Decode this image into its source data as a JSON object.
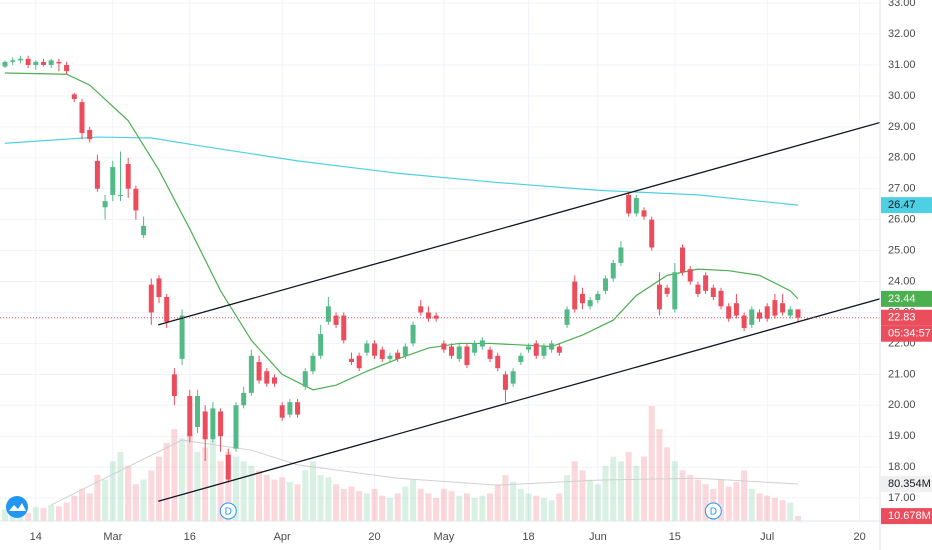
{
  "chart_data": {
    "type": "candlestick",
    "xlim": [
      -0.65,
      113.65
    ],
    "ylim": [
      16.26,
      33.1
    ],
    "volume_lim": [
      0,
      1133
    ],
    "grid": true,
    "up_color": "#53b987",
    "down_color": "#eb4d5c",
    "xticks": [
      {
        "value": 4,
        "label": "14"
      },
      {
        "value": 14,
        "label": "Mar"
      },
      {
        "value": 24,
        "label": "16"
      },
      {
        "value": 36,
        "label": "Apr"
      },
      {
        "value": 48,
        "label": "20"
      },
      {
        "value": 57,
        "label": "May"
      },
      {
        "value": 68,
        "label": "18"
      },
      {
        "value": 77,
        "label": "Jun"
      },
      {
        "value": 87,
        "label": "15"
      },
      {
        "value": 99,
        "label": "Jul"
      },
      {
        "value": 111,
        "label": "20"
      }
    ],
    "yticks": [
      {
        "value": 17,
        "label": "17.00"
      },
      {
        "value": 18,
        "label": "18.00"
      },
      {
        "value": 19,
        "label": "19.00"
      },
      {
        "value": 20,
        "label": "20.00"
      },
      {
        "value": 21,
        "label": "21.00"
      },
      {
        "value": 22,
        "label": "22.00"
      },
      {
        "value": 23,
        "label": "23.00"
      },
      {
        "value": 24,
        "label": "24.00"
      },
      {
        "value": 25,
        "label": "25.00"
      },
      {
        "value": 26,
        "label": "26.00"
      },
      {
        "value": 27,
        "label": "27.00"
      },
      {
        "value": 28,
        "label": "28.00"
      },
      {
        "value": 29,
        "label": "29.00"
      },
      {
        "value": 30,
        "label": "30.00"
      },
      {
        "value": 31,
        "label": "31.00"
      },
      {
        "value": 32,
        "label": "32.00"
      },
      {
        "value": 33,
        "label": "33.00"
      }
    ],
    "candles": {
      "x": [
        0,
        1,
        2,
        3,
        4,
        5,
        6,
        7,
        8,
        9,
        10,
        11,
        12,
        13,
        14,
        15,
        16,
        17,
        18,
        19,
        20,
        21,
        22,
        23,
        24,
        25,
        26,
        27,
        28,
        29,
        30,
        31,
        32,
        33,
        34,
        35,
        36,
        37,
        38,
        39,
        40,
        41,
        42,
        43,
        44,
        45,
        46,
        47,
        48,
        49,
        50,
        51,
        52,
        53,
        54,
        55,
        56,
        57,
        58,
        59,
        60,
        61,
        62,
        63,
        64,
        65,
        66,
        67,
        68,
        69,
        70,
        71,
        72,
        73,
        74,
        75,
        76,
        77,
        78,
        79,
        80,
        81,
        82,
        83,
        84,
        85,
        86,
        87,
        88,
        89,
        90,
        91,
        92,
        93,
        94,
        95,
        96,
        97,
        98,
        99,
        100,
        101,
        102,
        103
      ],
      "open": [
        30.95,
        31.1,
        31.15,
        31.2,
        31.0,
        31.1,
        31.0,
        31.1,
        31.0,
        30.05,
        29.8,
        28.9,
        27.9,
        26.4,
        26.8,
        26.8,
        27.8,
        27.0,
        25.5,
        23.9,
        24.1,
        23.5,
        21.0,
        21.5,
        20.3,
        19.3,
        19.8,
        18.9,
        19.8,
        18.4,
        18.6,
        20.0,
        20.4,
        21.4,
        21.1,
        20.9,
        20.0,
        19.7,
        20.1,
        20.6,
        21.1,
        21.6,
        22.7,
        22.9,
        22.9,
        21.5,
        21.6,
        21.7,
        22.0,
        21.8,
        21.5,
        21.7,
        21.6,
        22.0,
        23.2,
        23.0,
        22.9,
        22.0,
        21.9,
        21.5,
        21.9,
        21.7,
        21.9,
        21.8,
        21.6,
        21.0,
        20.7,
        21.4,
        21.8,
        22.0,
        21.6,
        21.8,
        21.9,
        22.6,
        24.0,
        23.6,
        23.2,
        23.4,
        23.7,
        24.1,
        24.6,
        26.8,
        26.2,
        26.3,
        26.0,
        23.9,
        23.8,
        23.1,
        25.1,
        24.4,
        23.9,
        24.2,
        23.8,
        23.7,
        23.2,
        23.3,
        22.9,
        22.6,
        23.0,
        23.2,
        23.4,
        23.3,
        22.9,
        23.1
      ],
      "high": [
        31.15,
        31.25,
        31.3,
        31.3,
        31.15,
        31.2,
        31.2,
        31.2,
        31.1,
        30.1,
        29.9,
        29.0,
        28.1,
        26.8,
        27.9,
        28.2,
        28.0,
        27.1,
        26.1,
        24.1,
        24.2,
        23.6,
        21.2,
        23.1,
        20.5,
        20.5,
        20.0,
        20.1,
        19.9,
        18.6,
        20.1,
        20.6,
        21.8,
        21.6,
        21.2,
        21.0,
        20.1,
        20.2,
        20.2,
        21.2,
        21.7,
        22.6,
        23.5,
        23.0,
        23.0,
        21.7,
        21.7,
        22.1,
        22.1,
        21.9,
        21.7,
        21.8,
        22.0,
        22.7,
        23.4,
        23.2,
        23.0,
        22.1,
        22.0,
        22.0,
        22.0,
        22.1,
        22.2,
        21.9,
        21.7,
        21.1,
        21.2,
        21.7,
        22.0,
        22.1,
        22.0,
        22.1,
        22.0,
        23.2,
        24.2,
        23.8,
        23.5,
        23.7,
        24.2,
        24.7,
        25.3,
        26.9,
        26.8,
        26.4,
        26.1,
        24.3,
        23.9,
        24.6,
        25.2,
        24.5,
        24.0,
        24.3,
        23.9,
        23.8,
        23.3,
        23.6,
        23.0,
        23.2,
        23.1,
        23.3,
        23.6,
        23.6,
        23.2,
        23.1
      ],
      "low": [
        30.9,
        31.0,
        31.05,
        30.9,
        30.85,
        30.95,
        30.9,
        30.8,
        30.7,
        29.8,
        28.6,
        28.5,
        26.9,
        26.0,
        26.6,
        26.6,
        26.7,
        26.0,
        25.4,
        22.6,
        23.3,
        22.5,
        20.0,
        21.3,
        18.8,
        19.1,
        18.2,
        18.8,
        18.5,
        17.5,
        18.5,
        19.9,
        20.3,
        20.7,
        20.6,
        20.6,
        19.5,
        19.6,
        19.6,
        20.5,
        21.0,
        21.5,
        22.6,
        22.5,
        22.0,
        21.3,
        21.1,
        21.6,
        21.5,
        21.4,
        21.4,
        21.4,
        21.5,
        21.9,
        22.9,
        22.7,
        22.7,
        21.7,
        21.5,
        21.4,
        21.2,
        21.6,
        21.8,
        21.4,
        21.1,
        20.1,
        20.6,
        21.3,
        21.7,
        21.5,
        21.5,
        21.7,
        21.6,
        22.5,
        23.0,
        23.1,
        23.1,
        23.3,
        23.6,
        24.0,
        24.5,
        26.1,
        26.1,
        26.0,
        25.0,
        22.9,
        23.5,
        23.0,
        24.2,
        23.9,
        23.5,
        23.6,
        23.4,
        23.1,
        22.7,
        22.8,
        22.4,
        22.5,
        22.7,
        22.7,
        22.8,
        22.9,
        22.8,
        22.7
      ],
      "close": [
        31.1,
        31.15,
        31.2,
        31.0,
        31.1,
        31.0,
        31.15,
        31.05,
        30.8,
        29.9,
        28.8,
        28.6,
        27.0,
        26.6,
        27.7,
        26.8,
        27.0,
        26.3,
        25.8,
        23.0,
        23.5,
        22.7,
        20.3,
        22.9,
        19.0,
        20.3,
        18.9,
        19.9,
        19.0,
        17.6,
        20.0,
        20.4,
        21.6,
        20.8,
        20.7,
        20.7,
        19.6,
        20.1,
        19.7,
        21.1,
        21.6,
        22.3,
        23.2,
        22.6,
        22.1,
        21.4,
        21.2,
        22.0,
        21.6,
        21.5,
        21.6,
        21.5,
        21.9,
        22.6,
        23.0,
        22.8,
        22.8,
        21.8,
        21.6,
        21.9,
        21.3,
        22.0,
        22.1,
        21.5,
        21.2,
        20.5,
        21.1,
        21.6,
        21.9,
        21.6,
        21.9,
        22.0,
        21.7,
        23.1,
        23.1,
        23.3,
        23.4,
        23.6,
        24.1,
        24.6,
        25.1,
        26.2,
        26.7,
        26.1,
        25.1,
        23.1,
        23.6,
        24.3,
        24.3,
        24.0,
        23.6,
        23.7,
        23.5,
        23.2,
        22.8,
        22.9,
        22.5,
        23.1,
        22.8,
        22.8,
        22.9,
        23.0,
        23.1,
        22.83
      ],
      "volume": [
        25,
        20,
        22,
        18,
        30,
        28,
        35,
        32,
        40,
        55,
        70,
        60,
        100,
        90,
        130,
        150,
        120,
        80,
        90,
        110,
        140,
        170,
        200,
        180,
        190,
        150,
        160,
        175,
        130,
        150,
        140,
        130,
        120,
        110,
        100,
        90,
        95,
        85,
        80,
        110,
        130,
        100,
        95,
        80,
        70,
        75,
        65,
        60,
        70,
        55,
        50,
        60,
        75,
        90,
        70,
        60,
        50,
        70,
        65,
        55,
        60,
        50,
        55,
        60,
        80,
        100,
        85,
        70,
        60,
        55,
        50,
        45,
        60,
        100,
        130,
        110,
        90,
        80,
        120,
        140,
        130,
        150,
        120,
        140,
        250,
        200,
        160,
        130,
        110,
        100,
        90,
        80,
        70,
        90,
        75,
        85,
        110,
        70,
        60,
        55,
        50,
        45,
        40,
        10.678
      ]
    },
    "ma20": {
      "color": "#4caf50",
      "x": [
        0,
        8,
        11,
        16,
        20,
        24,
        28,
        32,
        36,
        40,
        43,
        47,
        51,
        55,
        59,
        63,
        67,
        71,
        75,
        79,
        82,
        86,
        90,
        94,
        98,
        102,
        103
      ],
      "values": [
        30.74,
        30.7,
        30.35,
        29.2,
        27.6,
        25.7,
        23.7,
        22.1,
        21.0,
        20.5,
        20.65,
        21.1,
        21.5,
        21.85,
        22.0,
        22.0,
        21.95,
        21.9,
        22.27,
        22.75,
        23.55,
        24.2,
        24.4,
        24.35,
        24.2,
        23.7,
        23.44
      ]
    },
    "ma200": {
      "color": "#4dd0e1",
      "x": [
        0,
        12,
        19,
        25,
        38,
        51,
        64,
        77,
        90,
        103
      ],
      "values": [
        28.47,
        28.67,
        28.64,
        28.4,
        27.9,
        27.5,
        27.2,
        26.95,
        26.8,
        26.47
      ]
    },
    "volume_ma": {
      "color": "#d0d0d0",
      "x": [
        6,
        23,
        32,
        38,
        51,
        64,
        77,
        90,
        103
      ],
      "values": [
        35,
        176,
        154,
        122,
        93,
        78,
        89,
        93,
        80.354
      ]
    },
    "trendlines": [
      {
        "x": [
          19.9,
          114.5
        ],
        "y": [
          22.6,
          29.2
        ]
      },
      {
        "x": [
          19.9,
          114.5
        ],
        "y": [
          16.9,
          23.5
        ]
      }
    ],
    "badges": {
      "ma200_last": {
        "value": 26.47,
        "label": "26.47"
      },
      "ma20_last": {
        "value": 23.44,
        "label": "23.44"
      },
      "last_price": {
        "value": 22.83,
        "label": "22.83"
      },
      "countdown": "05:34:57",
      "volume_ma_last": {
        "value": 80.354,
        "label": "80.354M"
      },
      "volume_last": {
        "value": 10.678,
        "label": "10.678M"
      }
    },
    "events": [
      {
        "x": 29,
        "label": "D"
      },
      {
        "x": 92,
        "label": "D"
      }
    ]
  }
}
